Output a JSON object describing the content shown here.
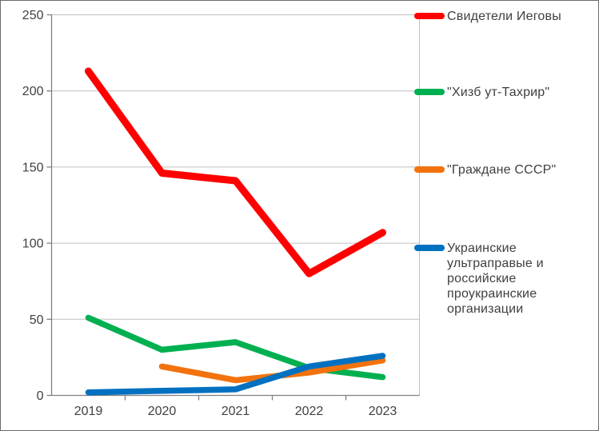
{
  "chart_data": {
    "type": "line",
    "title": "",
    "xlabel": "",
    "ylabel": "",
    "categories": [
      "2019",
      "2020",
      "2021",
      "2022",
      "2023"
    ],
    "series": [
      {
        "name": "Свидетели Иеговы",
        "color": "#FF0000",
        "values": [
          213,
          146,
          141,
          80,
          107
        ]
      },
      {
        "name": "\"Хизб ут-Тахрир\"",
        "color": "#00B050",
        "values": [
          51,
          30,
          35,
          18,
          12
        ]
      },
      {
        "name": "\"Граждане СССР\"",
        "color": "#F2720D",
        "values": [
          null,
          19,
          10,
          15,
          23
        ]
      },
      {
        "name": "Украинские ультраправые и российские проукраинские организации",
        "color": "#0070C0",
        "values": [
          2,
          3,
          4,
          19,
          26
        ]
      }
    ],
    "ylim": [
      0,
      250
    ],
    "yticks": [
      0,
      50,
      100,
      150,
      200,
      250
    ],
    "grid": true,
    "legend_position": "right"
  },
  "style_colors": {
    "gridline": "#C0C0C0",
    "axis": "#808080",
    "plot_right_border": "#BFBFBF",
    "tick_label": "#404040",
    "legend_text": "#3F3F3F",
    "background": "#FFFFFF",
    "outer_border": "#6B6B6B"
  }
}
